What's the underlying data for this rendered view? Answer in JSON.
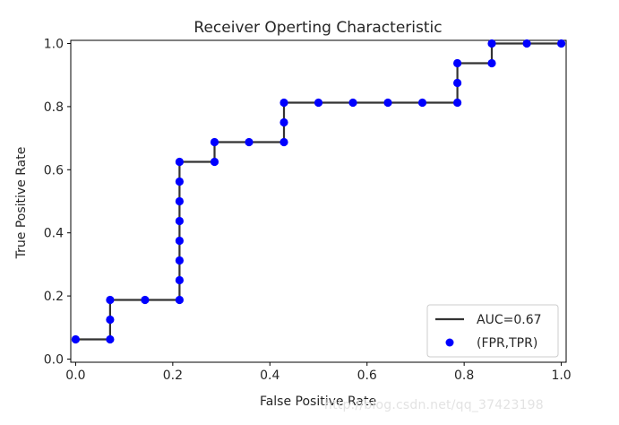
{
  "chart_data": {
    "type": "line",
    "title": "Receiver Operting Characteristic",
    "xlabel": "False Positive Rate",
    "ylabel": "True Positive Rate",
    "xlim": [
      -0.01,
      1.01
    ],
    "ylim": [
      -0.01,
      1.01
    ],
    "xticks": [
      "0.0",
      "0.2",
      "0.4",
      "0.6",
      "0.8",
      "1.0"
    ],
    "yticks": [
      "0.0",
      "0.2",
      "0.4",
      "0.6",
      "0.8",
      "1.0"
    ],
    "grid": false,
    "legend_position": "lower right",
    "series": [
      {
        "name": "AUC=0.67",
        "style": "line",
        "color": "#333333",
        "x": [
          0.0,
          0.071,
          0.071,
          0.071,
          0.143,
          0.214,
          0.214,
          0.214,
          0.214,
          0.214,
          0.214,
          0.214,
          0.214,
          0.214,
          0.286,
          0.286,
          0.357,
          0.429,
          0.429,
          0.429,
          0.5,
          0.571,
          0.643,
          0.714,
          0.786,
          0.786,
          0.786,
          0.857,
          0.857,
          0.929,
          1.0
        ],
        "y": [
          0.0625,
          0.0625,
          0.125,
          0.1875,
          0.1875,
          0.1875,
          0.25,
          0.3125,
          0.375,
          0.4375,
          0.5,
          0.5625,
          0.625,
          0.625,
          0.625,
          0.6875,
          0.6875,
          0.6875,
          0.75,
          0.8125,
          0.8125,
          0.8125,
          0.8125,
          0.8125,
          0.8125,
          0.875,
          0.9375,
          0.9375,
          1.0,
          1.0,
          1.0
        ]
      },
      {
        "name": "(FPR,TPR)",
        "style": "scatter",
        "color": "#0000ff",
        "x": [
          0.0,
          0.071,
          0.071,
          0.071,
          0.143,
          0.214,
          0.214,
          0.214,
          0.214,
          0.214,
          0.214,
          0.214,
          0.214,
          0.286,
          0.286,
          0.357,
          0.429,
          0.429,
          0.429,
          0.5,
          0.571,
          0.643,
          0.714,
          0.786,
          0.786,
          0.786,
          0.857,
          0.857,
          0.929,
          1.0
        ],
        "y": [
          0.0625,
          0.0625,
          0.125,
          0.1875,
          0.1875,
          0.1875,
          0.25,
          0.3125,
          0.375,
          0.4375,
          0.5,
          0.5625,
          0.625,
          0.625,
          0.6875,
          0.6875,
          0.6875,
          0.75,
          0.8125,
          0.8125,
          0.8125,
          0.8125,
          0.8125,
          0.8125,
          0.875,
          0.9375,
          0.9375,
          1.0,
          1.0,
          1.0
        ]
      }
    ]
  },
  "watermark": "http://blog.csdn.net/qq_37423198"
}
